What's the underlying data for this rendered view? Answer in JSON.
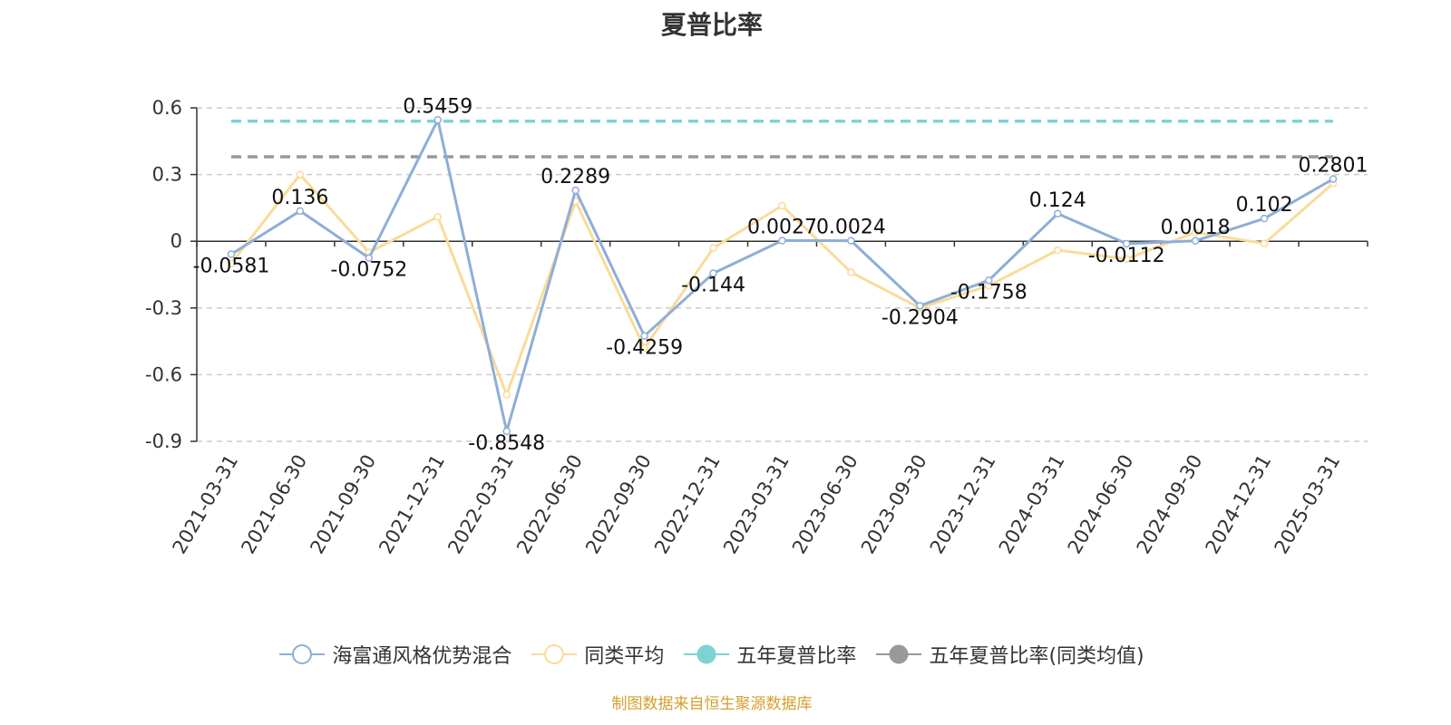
{
  "chart_data": {
    "type": "line",
    "title": "夏普比率",
    "categories": [
      "2021-03-31",
      "2021-06-30",
      "2021-09-30",
      "2021-12-31",
      "2022-03-31",
      "2022-06-30",
      "2022-09-30",
      "2022-12-31",
      "2023-03-31",
      "2023-06-30",
      "2023-09-30",
      "2023-12-31",
      "2024-03-31",
      "2024-06-30",
      "2024-09-30",
      "2024-12-31",
      "2025-03-31"
    ],
    "series": [
      {
        "name": "海富通风格优势混合",
        "color": "#8eaed8",
        "values": [
          -0.0581,
          0.136,
          -0.0752,
          0.5459,
          -0.8548,
          0.2289,
          -0.4259,
          -0.144,
          0.0027,
          0.0024,
          -0.2904,
          -0.1758,
          0.124,
          -0.0112,
          0.0018,
          0.102,
          0.2801
        ],
        "labels": [
          "-0.0581",
          "0.136",
          "-0.0752",
          "0.5459",
          "-0.8548",
          "0.2289",
          "-0.4259",
          "-0.144",
          "0.0027",
          "0.0024",
          "-0.2904",
          "-0.1758",
          "0.124",
          "-0.0112",
          "0.0018",
          "0.102",
          "0.2801"
        ]
      },
      {
        "name": "同类平均",
        "color": "#fadb9a",
        "values": [
          -0.1,
          0.3,
          -0.05,
          0.11,
          -0.69,
          0.18,
          -0.48,
          -0.03,
          0.16,
          -0.14,
          -0.3,
          -0.2,
          -0.04,
          -0.08,
          0.04,
          -0.01,
          0.26
        ]
      },
      {
        "name": "五年夏普比率",
        "color": "#7dd3d4",
        "value": 0.54
      },
      {
        "name": "五年夏普比率(同类均值)",
        "color": "#999999",
        "value": 0.38
      }
    ],
    "y_ticks": [
      "0.6",
      "0.3",
      "0",
      "-0.3",
      "-0.6",
      "-0.9"
    ],
    "ylim": [
      -0.9,
      0.6
    ],
    "grid": true,
    "legend_position": "bottom"
  },
  "source_note": "制图数据来自恒生聚源数据库"
}
